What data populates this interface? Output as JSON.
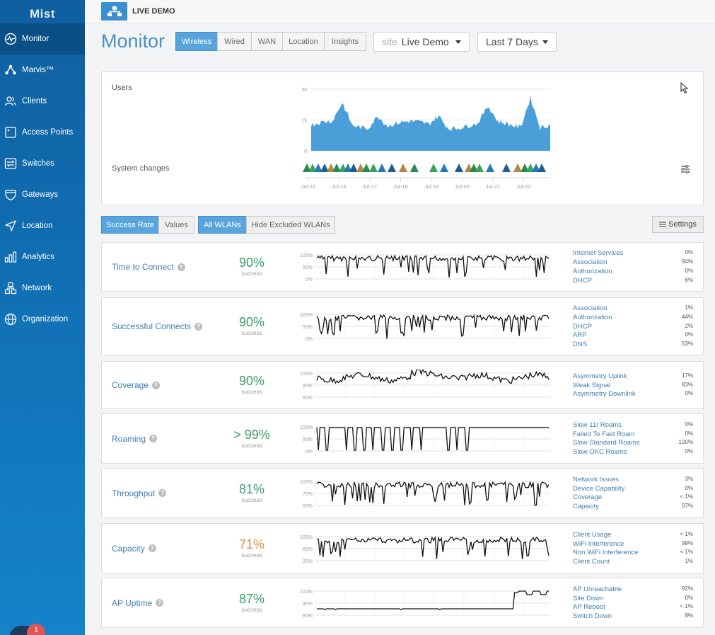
{
  "app": {
    "logo": "Mist",
    "org": "LIVE DEMO"
  },
  "sidebar": {
    "items": [
      {
        "label": "Monitor",
        "icon": "monitor-pulse-icon"
      },
      {
        "label": "Marvis™",
        "icon": "marvis-icon"
      },
      {
        "label": "Clients",
        "icon": "clients-icon"
      },
      {
        "label": "Access Points",
        "icon": "access-point-icon"
      },
      {
        "label": "Switches",
        "icon": "switch-icon"
      },
      {
        "label": "Gateways",
        "icon": "gateway-icon"
      },
      {
        "label": "Location",
        "icon": "location-arrow-icon"
      },
      {
        "label": "Analytics",
        "icon": "analytics-bars-icon"
      },
      {
        "label": "Network",
        "icon": "network-icon"
      },
      {
        "label": "Organization",
        "icon": "globe-icon"
      }
    ],
    "active": "Monitor",
    "chat_badge": "1"
  },
  "header": {
    "title": "Monitor",
    "tabs": [
      "Wireless",
      "Wired",
      "WAN",
      "Location",
      "Insights"
    ],
    "active_tab": "Wireless",
    "site_prefix": "site",
    "site_value": "Live Demo",
    "range_value": "Last 7 Days"
  },
  "timeline": {
    "users_label": "Users",
    "system_changes_label": "System changes",
    "y_ticks": [
      "30",
      "15",
      "0"
    ],
    "x_ticks": [
      "Jul-15",
      "Jul-16",
      "Jul-17",
      "Jul-18",
      "Jul-19",
      "Jul-20",
      "Jul-21",
      "Jul-22"
    ]
  },
  "filters": {
    "success_rate": "Success Rate",
    "values": "Values",
    "all_wlans": "All WLANs",
    "hide_excluded": "Hide Excluded WLANs",
    "settings": "Settings"
  },
  "metrics": [
    {
      "name": "Time to Connect",
      "value": "90%",
      "sub": "success",
      "ticks": [
        "100%",
        "50%",
        "0%"
      ],
      "legend": [
        [
          "Internet Services",
          "0%"
        ],
        [
          "Association",
          "94%"
        ],
        [
          "Authorization",
          "0%"
        ],
        [
          "DHCP",
          "6%"
        ]
      ]
    },
    {
      "name": "Successful Connects",
      "value": "90%",
      "sub": "success",
      "ticks": [
        "100%",
        "50%",
        "0%"
      ],
      "legend": [
        [
          "Association",
          "1%"
        ],
        [
          "Authorization",
          "44%"
        ],
        [
          "DHCP",
          "2%"
        ],
        [
          "ARP",
          "0%"
        ],
        [
          "DNS",
          "53%"
        ]
      ]
    },
    {
      "name": "Coverage",
      "value": "90%",
      "sub": "success",
      "ticks": [
        "100%",
        "80%",
        "60%"
      ],
      "legend": [
        [
          "Asymmetry Uplink",
          "17%"
        ],
        [
          "Weak Signal",
          "83%"
        ],
        [
          "Asymmetry Downlink",
          "0%"
        ]
      ]
    },
    {
      "name": "Roaming",
      "value": "> 99%",
      "sub": "success",
      "ticks": [
        "100%",
        "50%",
        "0%"
      ],
      "legend": [
        [
          "Slow 11r Roams",
          "0%"
        ],
        [
          "Failed To Fast Roam",
          "0%"
        ],
        [
          "Slow Standard Roams",
          "100%"
        ],
        [
          "Slow OKC Roams",
          "0%"
        ]
      ]
    },
    {
      "name": "Throughput",
      "value": "81%",
      "sub": "success",
      "ticks": [
        "100%",
        "75%",
        "50%"
      ],
      "legend": [
        [
          "Network Issues",
          "3%"
        ],
        [
          "Device Capability",
          "0%"
        ],
        [
          "Coverage",
          "< 1%"
        ],
        [
          "Capacity",
          "97%"
        ]
      ]
    },
    {
      "name": "Capacity",
      "value": "71%",
      "sub": "success",
      "ticks": [
        "100%",
        "60%",
        "20%"
      ],
      "legend": [
        [
          "Client Usage",
          "< 1%"
        ],
        [
          "WiFi Interference",
          "99%"
        ],
        [
          "Non WiFi Interference",
          "< 1%"
        ],
        [
          "Client Count",
          "1%"
        ]
      ]
    },
    {
      "name": "AP Uptime",
      "value": "87%",
      "sub": "success",
      "ticks": [
        "100%",
        "90%",
        "80%"
      ],
      "legend": [
        [
          "AP Unreachable",
          "92%"
        ],
        [
          "Site Down",
          "0%"
        ],
        [
          "AP Reboot",
          "< 1%"
        ],
        [
          "Switch Down",
          "8%"
        ]
      ]
    }
  ],
  "colors": {
    "accent": "#5aa4de",
    "good": "#37a067",
    "warn": "#e38a3b",
    "bars": "#4a9fd9"
  }
}
